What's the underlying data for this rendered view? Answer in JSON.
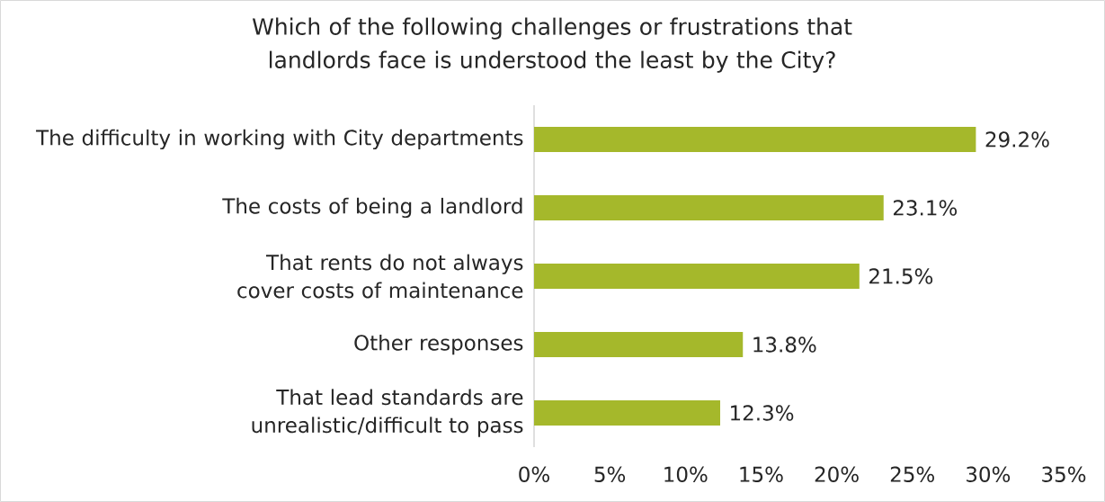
{
  "chart_data": {
    "type": "bar",
    "orientation": "horizontal",
    "title": "Which of the following challenges or frustrations that landlords face is understood the least by the City?",
    "categories": [
      "The difficulty in working with City departments",
      "The costs of being a landlord",
      "That rents do not always cover costs of maintenance",
      "Other responses",
      "That lead standards are unrealistic/difficult to pass"
    ],
    "values": [
      29.2,
      23.1,
      21.5,
      13.8,
      12.3
    ],
    "value_labels": [
      "29.2%",
      "23.1%",
      "21.5%",
      "13.8%",
      "12.3%"
    ],
    "color": "#a5b82b",
    "xlim": [
      0,
      35
    ],
    "xticks": [
      {
        "value": 0,
        "label": "0%"
      },
      {
        "value": 5,
        "label": "5%"
      },
      {
        "value": 10,
        "label": "10%"
      },
      {
        "value": 15,
        "label": "15%"
      },
      {
        "value": 20,
        "label": "20%"
      },
      {
        "value": 25,
        "label": "25%"
      },
      {
        "value": 30,
        "label": "30%"
      },
      {
        "value": 35,
        "label": "35%"
      }
    ],
    "grid": false
  }
}
